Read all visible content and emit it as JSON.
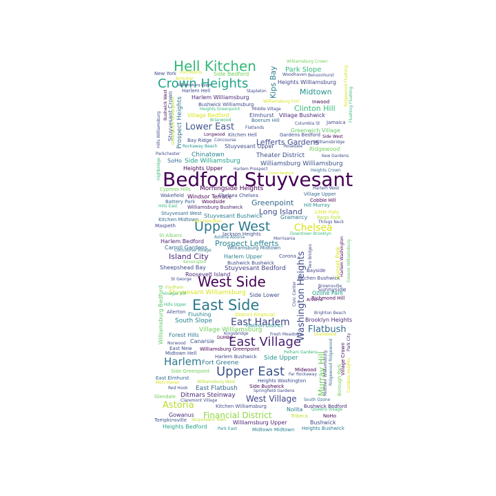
{
  "words": [
    {
      "text": "Bedford Stuyvesant",
      "color": "#440154"
    },
    {
      "text": "Hell Kitchen",
      "color": "#35b779"
    },
    {
      "text": "Crown Heights",
      "color": "#20a386"
    },
    {
      "text": "Upper West",
      "color": "#2a788e"
    },
    {
      "text": "East Side",
      "color": "#2a788e"
    },
    {
      "text": "West Side",
      "color": "#440154"
    },
    {
      "text": "East Village",
      "color": "#481f70"
    },
    {
      "text": "Upper East",
      "color": "#3b528b"
    },
    {
      "text": "Harlem",
      "color": "#2a788e"
    },
    {
      "text": "Chelsea",
      "color": "#d8e219"
    },
    {
      "text": "Astoria",
      "color": "#b5de2b"
    },
    {
      "text": "Lower East",
      "color": "#3b528b"
    },
    {
      "text": "East Harlem",
      "color": "#414487"
    },
    {
      "text": "Flatbush",
      "color": "#31688e"
    },
    {
      "text": "Washington Heights",
      "color": "#3e4a89"
    },
    {
      "text": "Murray Hill",
      "color": "#6ece58"
    },
    {
      "text": "Financial District",
      "color": "#90d743"
    },
    {
      "text": "West Village",
      "color": "#414487"
    },
    {
      "text": "Prospect Lefferts",
      "color": "#26828e"
    },
    {
      "text": "Island City",
      "color": "#482878"
    },
    {
      "text": "Lefferts Gardens",
      "color": "#3e4a89"
    },
    {
      "text": "Greenpoint",
      "color": "#31688e"
    },
    {
      "text": "Long Island",
      "color": "#3e4a89"
    },
    {
      "text": "Midtown",
      "color": "#21918c"
    },
    {
      "text": "Clinton Hill",
      "color": "#35b779"
    },
    {
      "text": "Park Slope",
      "color": "#35b779"
    },
    {
      "text": "Kips Bay",
      "color": "#287c8e"
    },
    {
      "text": "Theater District",
      "color": "#3e4a89"
    },
    {
      "text": "Williamsburg Williamsburg",
      "color": "#3b528b"
    },
    {
      "text": "Stuyvesant Bedford",
      "color": "#414487"
    },
    {
      "text": "Stuyvesant Williamsburg",
      "color": "#d8e219"
    },
    {
      "text": "Morningside Heights",
      "color": "#440154"
    },
    {
      "text": "Heights Williamsburg",
      "color": "#414487"
    },
    {
      "text": "Village Williamsburg",
      "color": "#6ece58"
    },
    {
      "text": "Ditmars Steinway",
      "color": "#482878"
    },
    {
      "text": "East Flatbush",
      "color": "#31688e"
    },
    {
      "text": "Fort Greene",
      "color": "#2a788e"
    },
    {
      "text": "South Slope",
      "color": "#26828e"
    },
    {
      "text": "Brooklyn Heights",
      "color": "#482878"
    },
    {
      "text": "Side Upper",
      "color": "#21918c"
    },
    {
      "text": "Side Lower",
      "color": "#3e4a89"
    },
    {
      "text": "Chinatown",
      "color": "#26828e"
    },
    {
      "text": "Side Williamsburg",
      "color": "#1fa088"
    },
    {
      "text": "Heights Upper",
      "color": "#440154"
    },
    {
      "text": "Harlem Williamsburg",
      "color": "#482878"
    },
    {
      "text": "Prospect Heights",
      "color": "#2c728e"
    },
    {
      "text": "Stuyvesant Crown",
      "color": "#3b528b"
    },
    {
      "text": "Village Bedford",
      "color": "#d8e219"
    },
    {
      "text": "Elmhurst",
      "color": "#3e4a89"
    },
    {
      "text": "Village Bushwick",
      "color": "#482878"
    },
    {
      "text": "Greenwich Village",
      "color": "#5ec962"
    },
    {
      "text": "Stuyvesant Upper",
      "color": "#3e4a89"
    },
    {
      "text": "Gramercy",
      "color": "#2a788e"
    },
    {
      "text": "Stuyvesant Bushwick",
      "color": "#287c8e"
    },
    {
      "text": "Harlem Bedford",
      "color": "#481f70"
    },
    {
      "text": "Harlem Upper",
      "color": "#26828e"
    },
    {
      "text": "Carroll Gardens",
      "color": "#31688e"
    },
    {
      "text": "Sunnyside",
      "color": "#3e4a89"
    },
    {
      "text": "Ozone Park",
      "color": "#1fa088"
    },
    {
      "text": "Kitchen Bushwick",
      "color": "#3e4a89"
    },
    {
      "text": "Williamsburg Bedford",
      "color": "#5ec962"
    },
    {
      "text": "Forest Hills",
      "color": "#2a788e"
    },
    {
      "text": "Canarsie",
      "color": "#3b528b"
    },
    {
      "text": "Williamsburg Upper",
      "color": "#481f70"
    },
    {
      "text": "Heights Bedford",
      "color": "#1fa088"
    },
    {
      "text": "Heights Bushwick",
      "color": "#287c8e"
    },
    {
      "text": "Bushwick Bedford",
      "color": "#482878"
    },
    {
      "text": "Bushwick",
      "color": "#3e4a89"
    },
    {
      "text": "Nolita",
      "color": "#2a788e"
    },
    {
      "text": "Tribeca",
      "color": "#b5de2b"
    },
    {
      "text": "NoHo",
      "color": "#440154"
    },
    {
      "text": "Gowanus",
      "color": "#482878"
    },
    {
      "text": "Tompkinsville",
      "color": "#3b528b"
    },
    {
      "text": "Sheepshead Bay",
      "color": "#3e4a89"
    },
    {
      "text": "Roosevelt Island",
      "color": "#482878"
    },
    {
      "text": "Bushwick Bushwick",
      "color": "#3e4a89"
    },
    {
      "text": "Williamsburg Midtown",
      "color": "#31688e"
    },
    {
      "text": "Jackson Heights",
      "color": "#3e4a89"
    },
    {
      "text": "Bayside",
      "color": "#414487"
    },
    {
      "text": "Corona",
      "color": "#3e4a89"
    },
    {
      "text": "Williamsburg Bushwick",
      "color": "#482878"
    },
    {
      "text": "Woodside",
      "color": "#440154"
    },
    {
      "text": "Cobble Hill",
      "color": "#440154"
    },
    {
      "text": "Village Upper",
      "color": "#31688e"
    },
    {
      "text": "Harlem West",
      "color": "#3e4a89"
    },
    {
      "text": "Windsor Terrace",
      "color": "#440154"
    },
    {
      "text": "Wakefield",
      "color": "#3e4a89"
    },
    {
      "text": "Battery Park",
      "color": "#31688e"
    },
    {
      "text": "Chelsea Chelsea",
      "color": "#3e4a89"
    },
    {
      "text": "Cypress Hills",
      "color": "#6ece58"
    },
    {
      "text": "Hill Murray",
      "color": "#21918c"
    },
    {
      "text": "Little Italy",
      "color": "#d8e219"
    },
    {
      "text": "Rego Park",
      "color": "#b5de2b"
    },
    {
      "text": "Throgs Neck",
      "color": "#3e4a89"
    },
    {
      "text": "Kitchen Midtown",
      "color": "#31688e"
    },
    {
      "text": "Fort Hamilton",
      "color": "#d8e219"
    },
    {
      "text": "Maspeth",
      "color": "#414487"
    },
    {
      "text": "Stuyvesant West",
      "color": "#31688e"
    },
    {
      "text": "Hills East",
      "color": "#35b779"
    },
    {
      "text": "Downtown Brooklyn",
      "color": "#35b779"
    },
    {
      "text": "Astoria Astoria",
      "color": "#2a788e"
    },
    {
      "text": "Morrisania",
      "color": "#3e4a89"
    },
    {
      "text": "St Albans",
      "color": "#6ece58"
    },
    {
      "text": "Concourse Village",
      "color": "#2a788e"
    },
    {
      "text": "Kensington",
      "color": "#6ece58"
    },
    {
      "text": "St George",
      "color": "#3e4a89"
    },
    {
      "text": "Fordham",
      "color": "#b5de2b"
    },
    {
      "text": "Vinegar Hill",
      "color": "#35b779"
    },
    {
      "text": "Hills Upper",
      "color": "#35b779"
    },
    {
      "text": "Allerton",
      "color": "#3e4a89"
    },
    {
      "text": "Flushing",
      "color": "#26828e"
    },
    {
      "text": "District Financial",
      "color": "#d8e219"
    },
    {
      "text": "DUMBO",
      "color": "#440154"
    },
    {
      "text": "Flatiron District",
      "color": "#21918c"
    },
    {
      "text": "Kingsbridge",
      "color": "#3e4a89"
    },
    {
      "text": "Fresh Meadows",
      "color": "#3e4a89"
    },
    {
      "text": "Gravesend",
      "color": "#d8e219"
    },
    {
      "text": "Norwood",
      "color": "#3e4a89"
    },
    {
      "text": "East New",
      "color": "#3e4a89"
    },
    {
      "text": "Midtown Hell",
      "color": "#3e4a89"
    },
    {
      "text": "Williamsburg Greenpoint",
      "color": "#440154"
    },
    {
      "text": "Harlem Bushwick",
      "color": "#3e4a89"
    },
    {
      "text": "Pelham Gardens",
      "color": "#35b779"
    },
    {
      "text": "Side Greenpoint",
      "color": "#6ece58"
    },
    {
      "text": "Midwood",
      "color": "#440154"
    },
    {
      "text": "Far Rockaway",
      "color": "#3e4a89"
    },
    {
      "text": "East Elmhurst",
      "color": "#31688e"
    },
    {
      "text": "Mott Haven",
      "color": "#d8e219"
    },
    {
      "text": "Williamsburg West",
      "color": "#b5de2b"
    },
    {
      "text": "Heights Washington",
      "color": "#3e4a89"
    },
    {
      "text": "Red Hook",
      "color": "#3e4a89"
    },
    {
      "text": "Springfield Gardens",
      "color": "#3e4a89"
    },
    {
      "text": "Side Bushwick",
      "color": "#440154"
    },
    {
      "text": "Glendale",
      "color": "#6ece58"
    },
    {
      "text": "Claremont Village",
      "color": "#3e4a89"
    },
    {
      "text": "South Ozone",
      "color": "#31688e"
    },
    {
      "text": "Kitchen Williamsburg",
      "color": "#3e4a89"
    },
    {
      "text": "Queens Village",
      "color": "#35b779"
    },
    {
      "text": "Stuyvesant Town",
      "color": "#b5de2b"
    },
    {
      "text": "Park East",
      "color": "#21918c"
    },
    {
      "text": "Midtown Midtown",
      "color": "#26828e"
    },
    {
      "text": "Williamsburg Crown",
      "color": "#6ece58"
    },
    {
      "text": "Bensonhurst",
      "color": "#3e4a89"
    },
    {
      "text": "Woodhaven",
      "color": "#3e4a89"
    },
    {
      "text": "Side Bedford",
      "color": "#6ece58"
    },
    {
      "text": "Boerum Hill",
      "color": "#31688e"
    },
    {
      "text": "New York",
      "color": "#3e4a89"
    },
    {
      "text": "Arrochar",
      "color": "#d8e219"
    },
    {
      "text": "Port Morris",
      "color": "#d8e219"
    },
    {
      "text": "Harlem Hell",
      "color": "#3e4a89"
    },
    {
      "text": "Stapleton",
      "color": "#3e4a89"
    },
    {
      "text": "Williamsburg Fort",
      "color": "#d8e219"
    },
    {
      "text": "Inwood",
      "color": "#440154"
    },
    {
      "text": "Bushwick Williamsburg",
      "color": "#3e4a89"
    },
    {
      "text": "Heights Greenpoint",
      "color": "#35b779"
    },
    {
      "text": "Middle Village",
      "color": "#3e4a89"
    },
    {
      "text": "Briarwood",
      "color": "#35b779"
    },
    {
      "text": "Columbia St",
      "color": "#3e4a89"
    },
    {
      "text": "Jamaica",
      "color": "#3e4a89"
    },
    {
      "text": "Flatlands",
      "color": "#3e4a89"
    },
    {
      "text": "Longwood",
      "color": "#440154"
    },
    {
      "text": "Kitchen Hell",
      "color": "#3e4a89"
    },
    {
      "text": "Gardens Bedford",
      "color": "#3e4a89"
    },
    {
      "text": "Side West",
      "color": "#440154"
    },
    {
      "text": "Williamsbridge",
      "color": "#3e4a89"
    },
    {
      "text": "Bay Ridge",
      "color": "#3e4a89"
    },
    {
      "text": "Concourse",
      "color": "#3e4a89"
    },
    {
      "text": "Rockaway Beach",
      "color": "#21918c"
    },
    {
      "text": "Rosedale",
      "color": "#3e4a89"
    },
    {
      "text": "Ridgewood",
      "color": "#6ece58"
    },
    {
      "text": "Parkchester",
      "color": "#3e4a89"
    },
    {
      "text": "SoHo",
      "color": "#31688e"
    },
    {
      "text": "Kew Gardens",
      "color": "#3e4a89"
    },
    {
      "text": "Harlem Prospect",
      "color": "#3e4a89"
    },
    {
      "text": "Heights Crown",
      "color": "#31688e"
    },
    {
      "text": "Crown Bedford",
      "color": "#d8e219"
    },
    {
      "text": "Richmond Hill",
      "color": "#440154"
    },
    {
      "text": "Arverne",
      "color": "#440154"
    },
    {
      "text": "Brighton Beach",
      "color": "#3e4a89"
    },
    {
      "text": "Brownsville",
      "color": "#3e4a89"
    },
    {
      "text": "Harlem Washington",
      "color": "#440154"
    },
    {
      "text": "Greene Williamsburg",
      "color": "#5ec962"
    },
    {
      "text": "Sunset Park",
      "color": "#d8e219"
    },
    {
      "text": "Two Bridges",
      "color": "#3e4a89"
    },
    {
      "text": "Civic Center",
      "color": "#414487"
    },
    {
      "text": "Village Crown",
      "color": "#440154"
    },
    {
      "text": "Park City",
      "color": "#482878"
    },
    {
      "text": "Borough Park",
      "color": "#6ece58"
    },
    {
      "text": "Ridgewood Ridgewood",
      "color": "#31688e"
    },
    {
      "text": "Midtown Williamsburg",
      "color": "#3e4a89"
    },
    {
      "text": "Cambria Heights",
      "color": "#d8e219"
    },
    {
      "text": "Hills Williamsburg",
      "color": "#3e4a89"
    },
    {
      "text": "Bushwick West",
      "color": "#440154"
    },
    {
      "text": "Greenpoint Greenpoint",
      "color": "#b5de2b"
    },
    {
      "text": "Highbridge",
      "color": "#35b779"
    },
    {
      "text": "Ridgewood Flushing",
      "color": "#d8e219"
    },
    {
      "text": "Flushing Flushing",
      "color": "#35b779"
    },
    {
      "text": "Williamsburg Upper",
      "color": "#3e4a89"
    }
  ]
}
